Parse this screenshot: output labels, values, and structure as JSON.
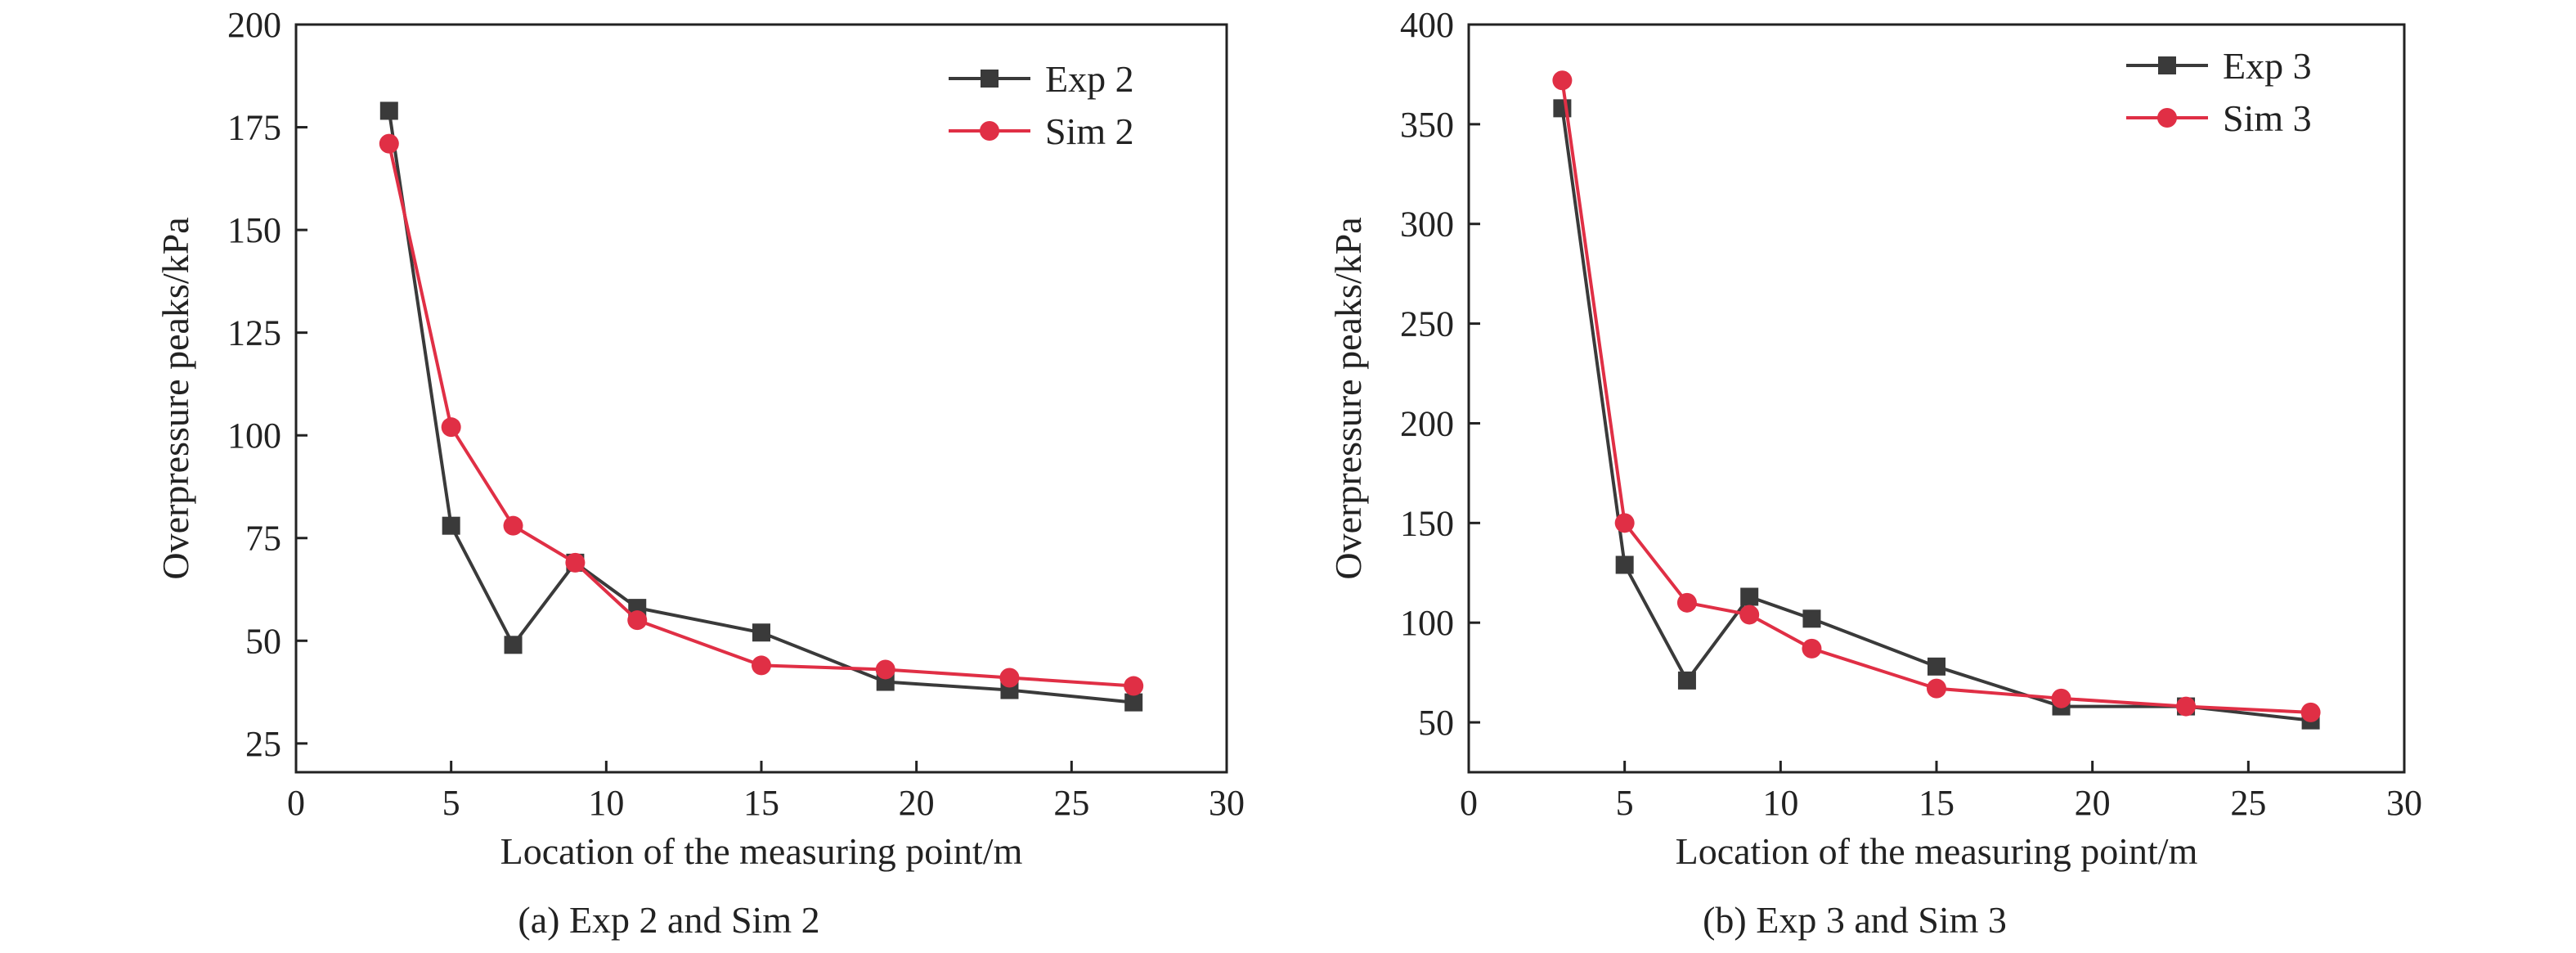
{
  "chart_data": [
    {
      "type": "line",
      "caption": "(a) Exp 2 and Sim 2",
      "xlabel": "Location of the measuring point/m",
      "ylabel": "Overpressure peaks/kPa",
      "xlim": [
        0,
        30
      ],
      "ylim": [
        18,
        200
      ],
      "xticks": [
        0,
        5,
        10,
        15,
        20,
        25,
        30
      ],
      "yticks": [
        25,
        50,
        75,
        100,
        125,
        150,
        175,
        200
      ],
      "legend_position": "top-right",
      "grid": false,
      "series": [
        {
          "name": "Exp 2",
          "color": "#3a3a3a",
          "marker": "square",
          "x": [
            3,
            5,
            7,
            9,
            11,
            15,
            19,
            23,
            27
          ],
          "y": [
            179,
            78,
            49,
            69,
            58,
            52,
            40,
            38,
            35
          ]
        },
        {
          "name": "Sim 2",
          "color": "#e02f45",
          "marker": "circle",
          "x": [
            3,
            5,
            7,
            9,
            11,
            15,
            19,
            23,
            27
          ],
          "y": [
            171,
            102,
            78,
            69,
            55,
            44,
            43,
            41,
            39
          ]
        }
      ]
    },
    {
      "type": "line",
      "caption": "(b) Exp 3 and Sim 3",
      "xlabel": "Location of the measuring point/m",
      "ylabel": "Overpressure peaks/kPa",
      "xlim": [
        0,
        30
      ],
      "ylim": [
        25,
        400
      ],
      "xticks": [
        0,
        5,
        10,
        15,
        20,
        25,
        30
      ],
      "yticks": [
        50,
        100,
        150,
        200,
        250,
        300,
        350,
        400
      ],
      "legend_position": "top-right",
      "grid": false,
      "series": [
        {
          "name": "Exp 3",
          "color": "#3a3a3a",
          "marker": "square",
          "x": [
            3,
            5,
            7,
            9,
            11,
            15,
            19,
            23,
            27
          ],
          "y": [
            358,
            129,
            71,
            113,
            102,
            78,
            58,
            58,
            51
          ]
        },
        {
          "name": "Sim 3",
          "color": "#e02f45",
          "marker": "circle",
          "x": [
            3,
            5,
            7,
            9,
            11,
            15,
            19,
            23,
            27
          ],
          "y": [
            372,
            150,
            110,
            104,
            87,
            67,
            62,
            58,
            55
          ]
        }
      ]
    }
  ]
}
